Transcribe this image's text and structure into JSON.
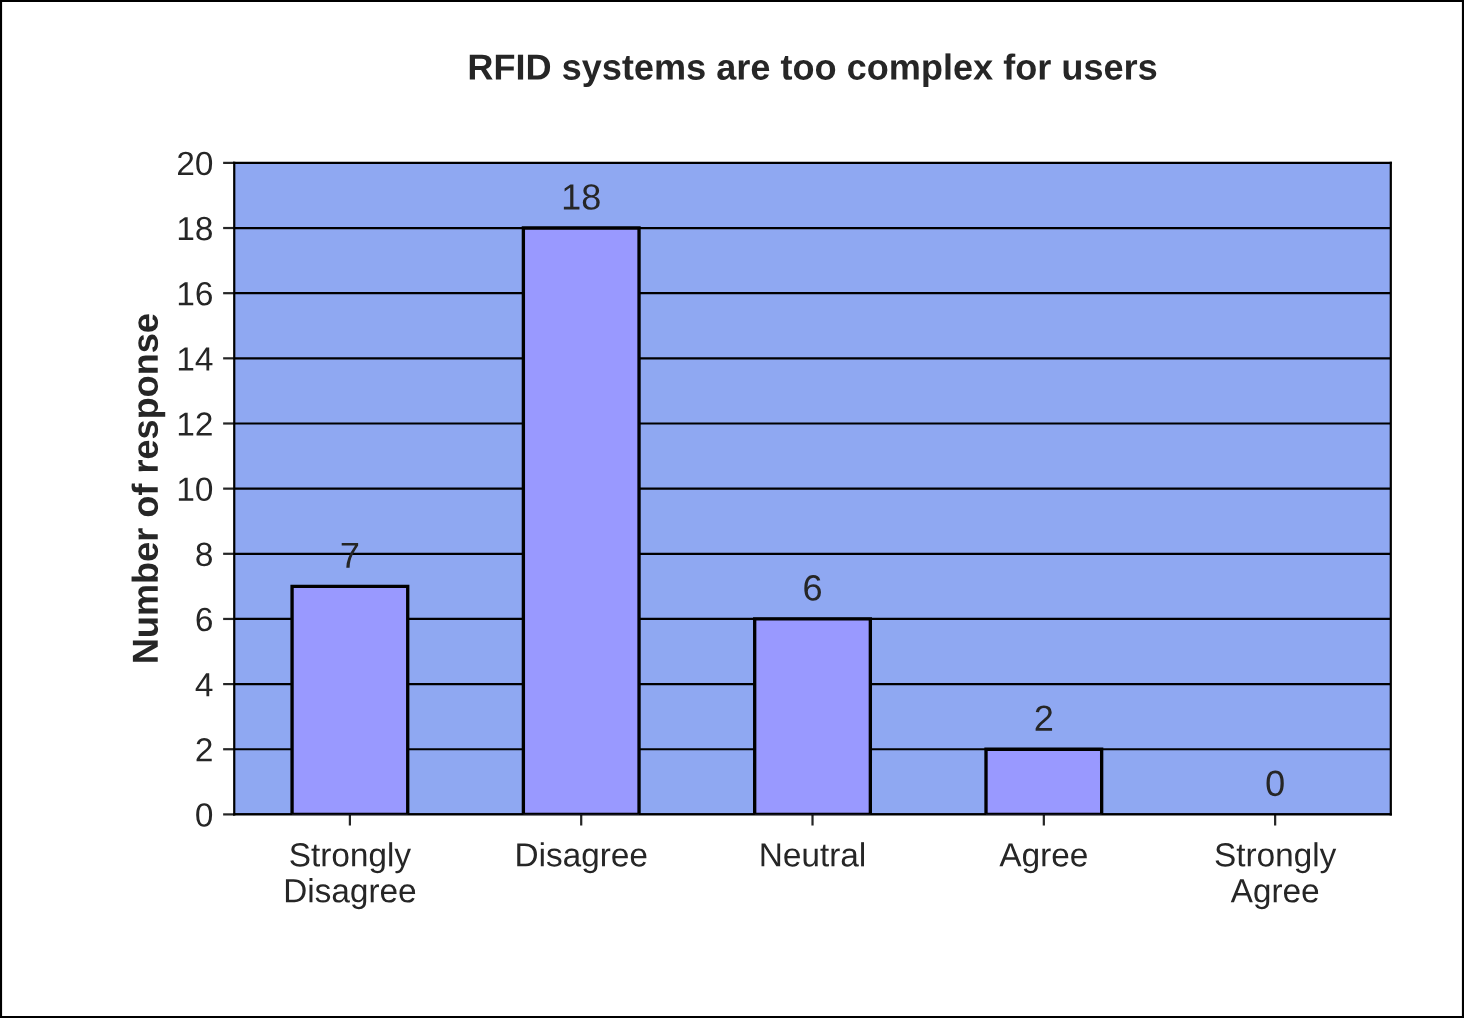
{
  "chart_data": {
    "type": "bar",
    "title": "RFID systems are too complex for users",
    "ylabel": "Number of response",
    "categories": [
      "Strongly\nDisagree",
      "Disagree",
      "Neutral",
      "Agree",
      "Strongly\nAgree"
    ],
    "values": [
      7,
      18,
      6,
      2,
      0
    ],
    "color": "#9999ff",
    "ylim": [
      0,
      20
    ],
    "yticks": [
      0,
      2,
      4,
      6,
      8,
      10,
      12,
      14,
      16,
      18,
      20
    ],
    "grid": "y",
    "data_labels": true
  }
}
